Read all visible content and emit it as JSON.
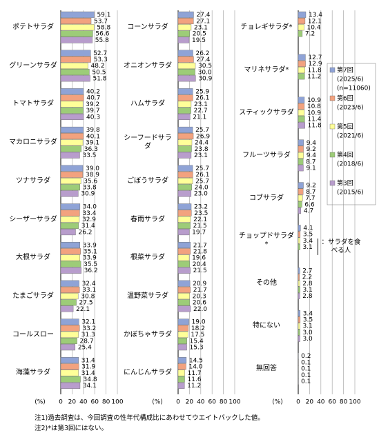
{
  "chart_data": [
    {
      "type": "bar",
      "orientation": "horizontal",
      "xlabel": "(%)",
      "xlim": [
        0,
        100
      ],
      "xticks": [
        0,
        20,
        40,
        60,
        80,
        100
      ],
      "grid": true,
      "categories": [
        "ポテトサラダ",
        "グリーンサラダ",
        "トマトサラダ",
        "マカロニサラダ",
        "ツナサラダ",
        "シーザーサラダ",
        "大根サラダ",
        "たまごサラダ",
        "コールスロー",
        "海藻サラダ"
      ],
      "series": [
        {
          "color": "#8fa3d6",
          "values": [
            59.1,
            52.7,
            40.2,
            39.8,
            39.0,
            34.0,
            33.9,
            32.4,
            32.1,
            31.4
          ],
          "value_labels": [
            "59.1",
            "52.7",
            "40.2",
            "39.8",
            "39.0",
            "34.0",
            "33.9",
            "32.4",
            "32.1",
            "31.4"
          ]
        },
        {
          "color": "#f2a27f",
          "values": [
            53.7,
            53.3,
            40.7,
            40.1,
            38.9,
            33.4,
            35.1,
            33.1,
            33.2,
            31.9
          ],
          "value_labels": [
            "53.7",
            "53.3",
            "40.7",
            "40.1",
            "38.9",
            "33.4",
            "35.1",
            "33.1",
            "33.2",
            "31.9"
          ]
        },
        {
          "color": "#ffff99",
          "values": [
            58.8,
            48.2,
            39.2,
            39.1,
            35.6,
            32.9,
            33.9,
            30.8,
            31.3,
            31.4
          ],
          "value_labels": [
            "58.8",
            "48.2",
            "39.2",
            "39.1",
            "35.6",
            "32.9",
            "33.9",
            "30.8",
            "31.3",
            "31.4"
          ]
        },
        {
          "color": "#9dcc78",
          "values": [
            56.6,
            50.5,
            39.7,
            36.3,
            33.8,
            31.4,
            35.5,
            27.5,
            28.7,
            34.8
          ],
          "value_labels": [
            "56.6",
            "50.5",
            "39.7",
            "36.3",
            "33.8",
            "31.4",
            "35.5",
            "27.5",
            "28.7",
            "34.8"
          ]
        },
        {
          "color": "#b89dcc",
          "values": [
            55.8,
            51.8,
            40.3,
            33.5,
            30.9,
            26.2,
            36.2,
            22.1,
            25.4,
            34.1
          ],
          "value_labels": [
            "55.8",
            "51.8",
            "40.3",
            "33.5",
            "30.9",
            "26.2",
            "36.2",
            "22.1",
            "25.4",
            "34.1"
          ]
        }
      ]
    },
    {
      "type": "bar",
      "orientation": "horizontal",
      "xlabel": "(%)",
      "xlim": [
        0,
        100
      ],
      "xticks": [
        0,
        20,
        40,
        60,
        80,
        100
      ],
      "grid": true,
      "categories": [
        "コーンサラダ",
        "オニオンサラダ",
        "ハムサラダ",
        "シーフードサラダ",
        "ごぼうサラダ",
        "春雨サラダ",
        "根菜サラダ",
        "温野菜サラダ",
        "かぼちゃサラダ",
        "にんじんサラダ"
      ],
      "series": [
        {
          "color": "#8fa3d6",
          "values": [
            27.4,
            26.2,
            25.9,
            25.7,
            25.7,
            23.2,
            21.7,
            20.9,
            19.0,
            14.5
          ]
        },
        {
          "color": "#f2a27f",
          "values": [
            27.1,
            27.4,
            26.1,
            26.9,
            26.1,
            23.5,
            21.8,
            21.7,
            18.2,
            14.0
          ]
        },
        {
          "color": "#ffff99",
          "values": [
            23.1,
            30.5,
            23.1,
            24.4,
            25.7,
            22.1,
            19.6,
            20.3,
            17.5,
            11.7
          ]
        },
        {
          "color": "#9dcc78",
          "values": [
            20.5,
            30.0,
            22.7,
            23.8,
            24.0,
            21.5,
            20.4,
            20.6,
            15.4,
            11.6
          ]
        },
        {
          "color": "#b89dcc",
          "values": [
            19.5,
            30.9,
            21.1,
            23.1,
            23.0,
            19.7,
            21.5,
            22.0,
            15.3,
            11.2
          ]
        }
      ]
    },
    {
      "type": "bar",
      "orientation": "horizontal",
      "xlabel": "(%)",
      "xlim": [
        0,
        100
      ],
      "xticks": [
        0,
        20,
        40,
        60,
        80,
        100
      ],
      "grid": true,
      "categories": [
        "チョレギサラダ*",
        "マリネサラダ*",
        "スティックサラダ",
        "フルーツサラダ",
        "コブサラダ",
        "チョップドサラダ*",
        "その他",
        "特にない",
        "無回答"
      ],
      "series": [
        {
          "name": "第7回",
          "period": "(2025/6)",
          "n": "(n=11060)",
          "color": "#8fa3d6",
          "values": [
            13.4,
            12.7,
            10.9,
            9.4,
            9.2,
            4.1,
            2.7,
            3.4,
            0.2
          ]
        },
        {
          "name": "第6回",
          "period": "(2023/6)",
          "color": "#f2a27f",
          "values": [
            12.1,
            12.9,
            10.8,
            9.2,
            8.7,
            3.5,
            2.2,
            3.5,
            0.1
          ]
        },
        {
          "name": "第5回",
          "period": "(2021/6)",
          "color": "#ffff99",
          "values": [
            10.4,
            11.8,
            10.9,
            9.4,
            7.7,
            3.4,
            2.8,
            3.1,
            0.1
          ]
        },
        {
          "name": "第4回",
          "period": "(2018/6)",
          "color": "#9dcc78",
          "values": [
            7.2,
            11.2,
            11.4,
            8.7,
            6.6,
            3.1,
            3.1,
            3.0,
            0.1
          ]
        },
        {
          "name": "第3回",
          "period": "(2015/6)",
          "color": "#b89dcc",
          "values": [
            null,
            null,
            11.8,
            9.1,
            4.7,
            null,
            2.8,
            3.0,
            0.1
          ]
        }
      ]
    }
  ],
  "bracket_note": "：サラダを食べる人",
  "notes": [
    "注1)過去調査は、今回調査の性年代構成比にあわせてウエイトバックした値。",
    "注2)*は第3回にはない。"
  ]
}
